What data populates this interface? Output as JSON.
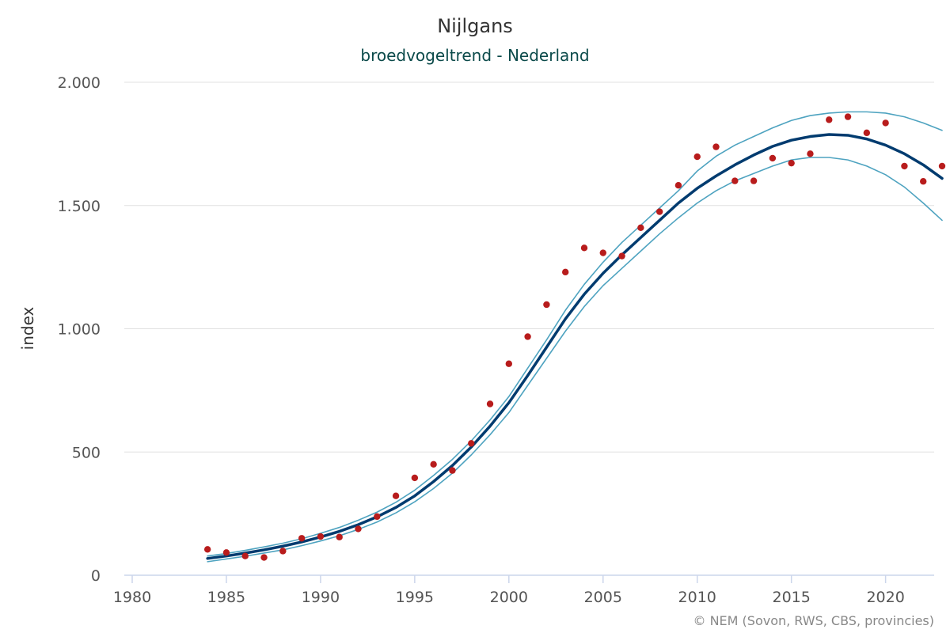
{
  "chart_data": {
    "type": "line",
    "title": "Nijlgans",
    "subtitle": "broedvogeltrend - Nederland",
    "ylabel": "index",
    "xlabel": "",
    "credits": "© NEM (Sovon, RWS, CBS, provincies)",
    "xlim": [
      1980,
      2023
    ],
    "ylim": [
      0,
      2000
    ],
    "x_ticks": [
      1980,
      1985,
      1990,
      1995,
      2000,
      2005,
      2010,
      2015,
      2020
    ],
    "y_ticks": [
      0,
      500,
      1000,
      1500,
      2000
    ],
    "y_tick_labels": [
      "0",
      "500",
      "1.000",
      "1.500",
      "2.000"
    ],
    "grid": true,
    "colors": {
      "trend": "#003b6f",
      "confidence": "#4ea3c0",
      "observed": "#b81c1c",
      "grid": "#e0e0e0",
      "axis": "#ccd6eb"
    },
    "series": [
      {
        "name": "trend",
        "x": [
          1984,
          1985,
          1986,
          1987,
          1988,
          1989,
          1990,
          1991,
          1992,
          1993,
          1994,
          1995,
          1996,
          1997,
          1998,
          1999,
          2000,
          2001,
          2002,
          2003,
          2004,
          2005,
          2006,
          2007,
          2008,
          2009,
          2010,
          2011,
          2012,
          2013,
          2014,
          2015,
          2016,
          2017,
          2018,
          2019,
          2020,
          2021,
          2022,
          2023
        ],
        "values": [
          68,
          78,
          90,
          103,
          118,
          135,
          155,
          178,
          205,
          237,
          275,
          322,
          380,
          445,
          520,
          605,
          700,
          810,
          925,
          1040,
          1140,
          1225,
          1300,
          1370,
          1440,
          1510,
          1570,
          1620,
          1665,
          1705,
          1740,
          1765,
          1780,
          1788,
          1785,
          1770,
          1745,
          1710,
          1665,
          1610
        ]
      },
      {
        "name": "upper",
        "x": [
          1984,
          1985,
          1986,
          1987,
          1988,
          1989,
          1990,
          1991,
          1992,
          1993,
          1994,
          1995,
          1996,
          1997,
          1998,
          1999,
          2000,
          2001,
          2002,
          2003,
          2004,
          2005,
          2006,
          2007,
          2008,
          2009,
          2010,
          2011,
          2012,
          2013,
          2014,
          2015,
          2016,
          2017,
          2018,
          2019,
          2020,
          2021,
          2022,
          2023
        ],
        "values": [
          78,
          88,
          101,
          115,
          130,
          148,
          170,
          194,
          223,
          256,
          296,
          345,
          405,
          470,
          545,
          630,
          725,
          840,
          955,
          1075,
          1180,
          1270,
          1350,
          1420,
          1490,
          1560,
          1640,
          1700,
          1745,
          1780,
          1815,
          1845,
          1865,
          1875,
          1880,
          1880,
          1875,
          1860,
          1835,
          1805
        ]
      },
      {
        "name": "lower",
        "x": [
          1984,
          1985,
          1986,
          1987,
          1988,
          1989,
          1990,
          1991,
          1992,
          1993,
          1994,
          1995,
          1996,
          1997,
          1998,
          1999,
          2000,
          2001,
          2002,
          2003,
          2004,
          2005,
          2006,
          2007,
          2008,
          2009,
          2010,
          2011,
          2012,
          2013,
          2014,
          2015,
          2016,
          2017,
          2018,
          2019,
          2020,
          2021,
          2022,
          2023
        ],
        "values": [
          55,
          66,
          77,
          90,
          103,
          120,
          139,
          160,
          186,
          216,
          253,
          298,
          352,
          414,
          488,
          570,
          660,
          770,
          880,
          990,
          1090,
          1175,
          1245,
          1315,
          1385,
          1450,
          1510,
          1560,
          1600,
          1630,
          1660,
          1685,
          1695,
          1695,
          1685,
          1660,
          1625,
          1575,
          1510,
          1440
        ]
      },
      {
        "name": "observed",
        "x": [
          1984,
          1985,
          1986,
          1987,
          1988,
          1989,
          1990,
          1991,
          1992,
          1993,
          1994,
          1995,
          1996,
          1997,
          1998,
          1999,
          2000,
          2001,
          2002,
          2003,
          2004,
          2005,
          2006,
          2007,
          2008,
          2009,
          2010,
          2011,
          2012,
          2013,
          2014,
          2015,
          2016,
          2017,
          2018,
          2019,
          2020,
          2021,
          2022,
          2023
        ],
        "values": [
          105,
          92,
          78,
          72,
          98,
          150,
          157,
          155,
          188,
          238,
          322,
          395,
          450,
          425,
          535,
          695,
          858,
          968,
          1098,
          1230,
          1328,
          1308,
          1295,
          1410,
          1475,
          1582,
          1698,
          1738,
          1600,
          1600,
          1692,
          1672,
          1710,
          1848,
          1860,
          1795,
          1835,
          1660,
          1598,
          1660
        ]
      }
    ]
  }
}
